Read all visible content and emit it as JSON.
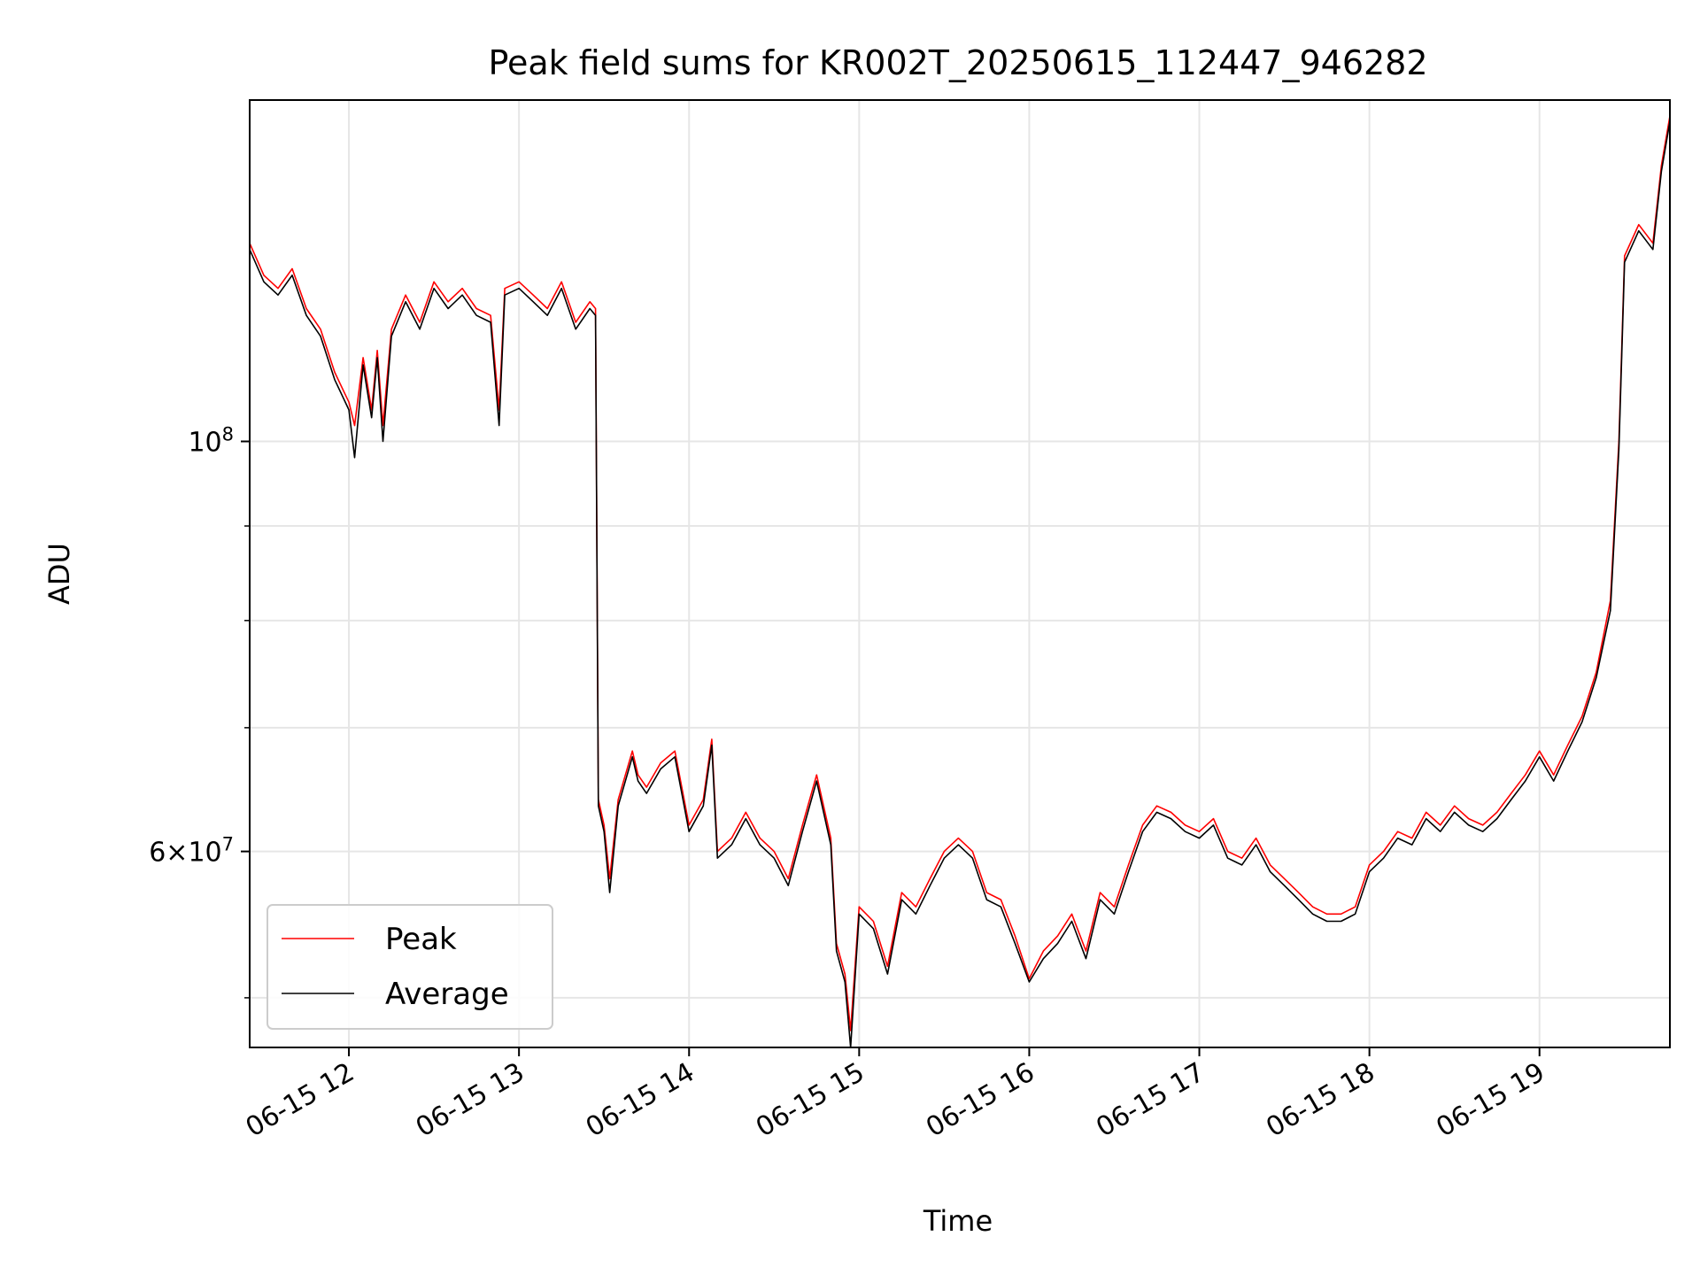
{
  "chart_data": {
    "type": "line",
    "title": "Peak field sums for KR002T_20250615_112447_946282",
    "xlabel": "Time",
    "ylabel": "ADU",
    "yscale": "log",
    "grid": true,
    "legend_position": "lower-left",
    "x_range": [
      "2025-06-15 11:25",
      "2025-06-15 19:46"
    ],
    "ylim": [
      47000000,
      153000000
    ],
    "x_tick_labels": [
      "06-15 12",
      "06-15 13",
      "06-15 14",
      "06-15 15",
      "06-15 16",
      "06-15 17",
      "06-15 18",
      "06-15 19"
    ],
    "y_tick_labels": [
      {
        "value": 100000000,
        "base": "10",
        "exp": "8",
        "mult": ""
      },
      {
        "value": 60000000,
        "base": "10",
        "exp": "7",
        "mult": "6×"
      }
    ],
    "y_minor_ticks": [
      50000000,
      70000000,
      80000000,
      90000000
    ],
    "series": [
      {
        "name": "Peak",
        "color": "#ff0000",
        "x": [
          "2025-06-15 11:25",
          "2025-06-15 11:30",
          "2025-06-15 11:35",
          "2025-06-15 11:40",
          "2025-06-15 11:45",
          "2025-06-15 11:50",
          "2025-06-15 11:55",
          "2025-06-15 12:00",
          "2025-06-15 12:02",
          "2025-06-15 12:05",
          "2025-06-15 12:08",
          "2025-06-15 12:10",
          "2025-06-15 12:12",
          "2025-06-15 12:15",
          "2025-06-15 12:20",
          "2025-06-15 12:25",
          "2025-06-15 12:30",
          "2025-06-15 12:35",
          "2025-06-15 12:40",
          "2025-06-15 12:45",
          "2025-06-15 12:50",
          "2025-06-15 12:53",
          "2025-06-15 12:55",
          "2025-06-15 13:00",
          "2025-06-15 13:05",
          "2025-06-15 13:10",
          "2025-06-15 13:15",
          "2025-06-15 13:20",
          "2025-06-15 13:25",
          "2025-06-15 13:27",
          "2025-06-15 13:28",
          "2025-06-15 13:30",
          "2025-06-15 13:32",
          "2025-06-15 13:35",
          "2025-06-15 13:40",
          "2025-06-15 13:42",
          "2025-06-15 13:45",
          "2025-06-15 13:50",
          "2025-06-15 13:55",
          "2025-06-15 14:00",
          "2025-06-15 14:05",
          "2025-06-15 14:08",
          "2025-06-15 14:10",
          "2025-06-15 14:15",
          "2025-06-15 14:20",
          "2025-06-15 14:25",
          "2025-06-15 14:30",
          "2025-06-15 14:35",
          "2025-06-15 14:40",
          "2025-06-15 14:45",
          "2025-06-15 14:50",
          "2025-06-15 14:52",
          "2025-06-15 14:55",
          "2025-06-15 14:57",
          "2025-06-15 15:00",
          "2025-06-15 15:05",
          "2025-06-15 15:10",
          "2025-06-15 15:15",
          "2025-06-15 15:20",
          "2025-06-15 15:25",
          "2025-06-15 15:30",
          "2025-06-15 15:35",
          "2025-06-15 15:40",
          "2025-06-15 15:45",
          "2025-06-15 15:50",
          "2025-06-15 15:55",
          "2025-06-15 16:00",
          "2025-06-15 16:05",
          "2025-06-15 16:10",
          "2025-06-15 16:15",
          "2025-06-15 16:20",
          "2025-06-15 16:25",
          "2025-06-15 16:30",
          "2025-06-15 16:35",
          "2025-06-15 16:40",
          "2025-06-15 16:45",
          "2025-06-15 16:50",
          "2025-06-15 16:55",
          "2025-06-15 17:00",
          "2025-06-15 17:05",
          "2025-06-15 17:10",
          "2025-06-15 17:15",
          "2025-06-15 17:20",
          "2025-06-15 17:25",
          "2025-06-15 17:30",
          "2025-06-15 17:35",
          "2025-06-15 17:40",
          "2025-06-15 17:45",
          "2025-06-15 17:50",
          "2025-06-15 17:55",
          "2025-06-15 18:00",
          "2025-06-15 18:05",
          "2025-06-15 18:10",
          "2025-06-15 18:15",
          "2025-06-15 18:20",
          "2025-06-15 18:25",
          "2025-06-15 18:30",
          "2025-06-15 18:35",
          "2025-06-15 18:40",
          "2025-06-15 18:45",
          "2025-06-15 18:50",
          "2025-06-15 18:55",
          "2025-06-15 19:00",
          "2025-06-15 19:05",
          "2025-06-15 19:10",
          "2025-06-15 19:15",
          "2025-06-15 19:20",
          "2025-06-15 19:25",
          "2025-06-15 19:28",
          "2025-06-15 19:30",
          "2025-06-15 19:35",
          "2025-06-15 19:40",
          "2025-06-15 19:43",
          "2025-06-15 19:46"
        ],
        "y": [
          128000000,
          123000000,
          121000000,
          124000000,
          118000000,
          115000000,
          109000000,
          105000000,
          102000000,
          111000000,
          104000000,
          112000000,
          102000000,
          115000000,
          120000000,
          116000000,
          122000000,
          119000000,
          121000000,
          118000000,
          117000000,
          104000000,
          121000000,
          122000000,
          120000000,
          118000000,
          122000000,
          116000000,
          119000000,
          118000000,
          64000000,
          62000000,
          58000000,
          64000000,
          68000000,
          66000000,
          65000000,
          67000000,
          68000000,
          62000000,
          64000000,
          69000000,
          60000000,
          61000000,
          63000000,
          61000000,
          60000000,
          58000000,
          62000000,
          66000000,
          61000000,
          53500000,
          51500000,
          48000000,
          56000000,
          55000000,
          52000000,
          57000000,
          56000000,
          58000000,
          60000000,
          61000000,
          60000000,
          57000000,
          56500000,
          54000000,
          51200000,
          53000000,
          54000000,
          55500000,
          53000000,
          57000000,
          56000000,
          59000000,
          62000000,
          63500000,
          63000000,
          62000000,
          61500000,
          62500000,
          60000000,
          59500000,
          61000000,
          59000000,
          58000000,
          57000000,
          56000000,
          55500000,
          55500000,
          56000000,
          59000000,
          60000000,
          61500000,
          61000000,
          63000000,
          62000000,
          63500000,
          62500000,
          62000000,
          63000000,
          64500000,
          66000000,
          68000000,
          66000000,
          68500000,
          71000000,
          75000000,
          82000000,
          100000000,
          126000000,
          131000000,
          128000000,
          141000000,
          150000000
        ]
      },
      {
        "name": "Average",
        "color": "#000000",
        "x": [
          "2025-06-15 11:25",
          "2025-06-15 11:30",
          "2025-06-15 11:35",
          "2025-06-15 11:40",
          "2025-06-15 11:45",
          "2025-06-15 11:50",
          "2025-06-15 11:55",
          "2025-06-15 12:00",
          "2025-06-15 12:02",
          "2025-06-15 12:05",
          "2025-06-15 12:08",
          "2025-06-15 12:10",
          "2025-06-15 12:12",
          "2025-06-15 12:15",
          "2025-06-15 12:20",
          "2025-06-15 12:25",
          "2025-06-15 12:30",
          "2025-06-15 12:35",
          "2025-06-15 12:40",
          "2025-06-15 12:45",
          "2025-06-15 12:50",
          "2025-06-15 12:53",
          "2025-06-15 12:55",
          "2025-06-15 13:00",
          "2025-06-15 13:05",
          "2025-06-15 13:10",
          "2025-06-15 13:15",
          "2025-06-15 13:20",
          "2025-06-15 13:25",
          "2025-06-15 13:27",
          "2025-06-15 13:28",
          "2025-06-15 13:30",
          "2025-06-15 13:32",
          "2025-06-15 13:35",
          "2025-06-15 13:40",
          "2025-06-15 13:42",
          "2025-06-15 13:45",
          "2025-06-15 13:50",
          "2025-06-15 13:55",
          "2025-06-15 14:00",
          "2025-06-15 14:05",
          "2025-06-15 14:08",
          "2025-06-15 14:10",
          "2025-06-15 14:15",
          "2025-06-15 14:20",
          "2025-06-15 14:25",
          "2025-06-15 14:30",
          "2025-06-15 14:35",
          "2025-06-15 14:40",
          "2025-06-15 14:45",
          "2025-06-15 14:50",
          "2025-06-15 14:52",
          "2025-06-15 14:55",
          "2025-06-15 14:57",
          "2025-06-15 15:00",
          "2025-06-15 15:05",
          "2025-06-15 15:10",
          "2025-06-15 15:15",
          "2025-06-15 15:20",
          "2025-06-15 15:25",
          "2025-06-15 15:30",
          "2025-06-15 15:35",
          "2025-06-15 15:40",
          "2025-06-15 15:45",
          "2025-06-15 15:50",
          "2025-06-15 15:55",
          "2025-06-15 16:00",
          "2025-06-15 16:05",
          "2025-06-15 16:10",
          "2025-06-15 16:15",
          "2025-06-15 16:20",
          "2025-06-15 16:25",
          "2025-06-15 16:30",
          "2025-06-15 16:35",
          "2025-06-15 16:40",
          "2025-06-15 16:45",
          "2025-06-15 16:50",
          "2025-06-15 16:55",
          "2025-06-15 17:00",
          "2025-06-15 17:05",
          "2025-06-15 17:10",
          "2025-06-15 17:15",
          "2025-06-15 17:20",
          "2025-06-15 17:25",
          "2025-06-15 17:30",
          "2025-06-15 17:35",
          "2025-06-15 17:40",
          "2025-06-15 17:45",
          "2025-06-15 17:50",
          "2025-06-15 17:55",
          "2025-06-15 18:00",
          "2025-06-15 18:05",
          "2025-06-15 18:10",
          "2025-06-15 18:15",
          "2025-06-15 18:20",
          "2025-06-15 18:25",
          "2025-06-15 18:30",
          "2025-06-15 18:35",
          "2025-06-15 18:40",
          "2025-06-15 18:45",
          "2025-06-15 18:50",
          "2025-06-15 18:55",
          "2025-06-15 19:00",
          "2025-06-15 19:05",
          "2025-06-15 19:10",
          "2025-06-15 19:15",
          "2025-06-15 19:20",
          "2025-06-15 19:25",
          "2025-06-15 19:28",
          "2025-06-15 19:30",
          "2025-06-15 19:35",
          "2025-06-15 19:40",
          "2025-06-15 19:43",
          "2025-06-15 19:46"
        ],
        "y": [
          127000000,
          122000000,
          120000000,
          123000000,
          117000000,
          114000000,
          108000000,
          104000000,
          98000000,
          110000000,
          103000000,
          111000000,
          100000000,
          114000000,
          119000000,
          115000000,
          121000000,
          118000000,
          120000000,
          117000000,
          116000000,
          102000000,
          120000000,
          121000000,
          119000000,
          117000000,
          121000000,
          115000000,
          118000000,
          117000000,
          63500000,
          61500000,
          57000000,
          63500000,
          67500000,
          65500000,
          64500000,
          66500000,
          67500000,
          61500000,
          63500000,
          68500000,
          59500000,
          60500000,
          62500000,
          60500000,
          59500000,
          57500000,
          61500000,
          65500000,
          60500000,
          53000000,
          51000000,
          47000000,
          55500000,
          54500000,
          51500000,
          56500000,
          55500000,
          57500000,
          59500000,
          60500000,
          59500000,
          56500000,
          56000000,
          53500000,
          51000000,
          52500000,
          53500000,
          55000000,
          52500000,
          56500000,
          55500000,
          58500000,
          61500000,
          63000000,
          62500000,
          61500000,
          61000000,
          62000000,
          59500000,
          59000000,
          60500000,
          58500000,
          57500000,
          56500000,
          55500000,
          55000000,
          55000000,
          55500000,
          58500000,
          59500000,
          61000000,
          60500000,
          62500000,
          61500000,
          63000000,
          62000000,
          61500000,
          62500000,
          64000000,
          65500000,
          67500000,
          65500000,
          68000000,
          70500000,
          74500000,
          81000000,
          99000000,
          125000000,
          130000000,
          127000000,
          140000000,
          149000000
        ]
      }
    ]
  }
}
